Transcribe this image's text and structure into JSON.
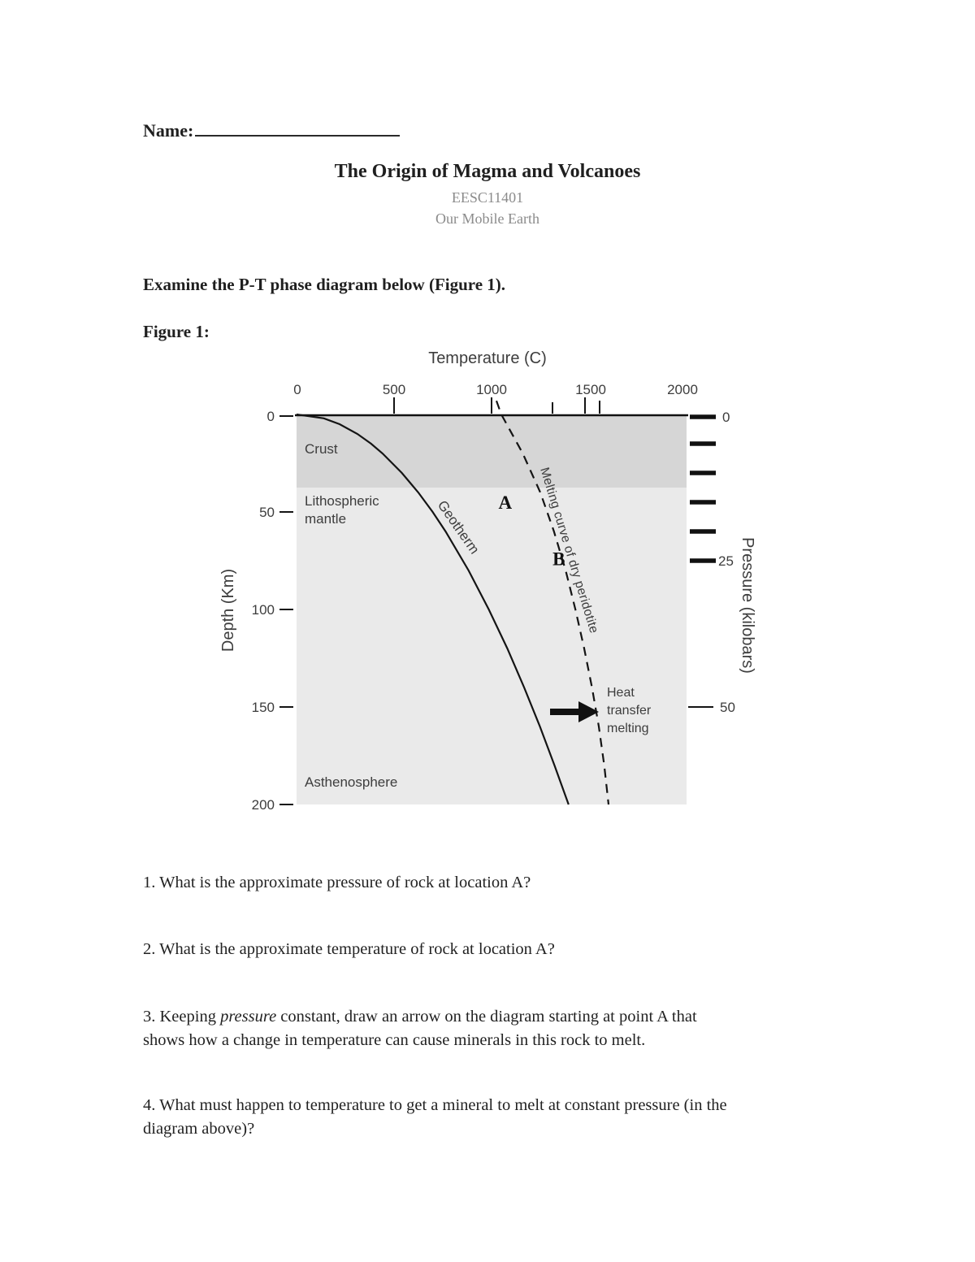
{
  "page": {
    "name_label": "Name:",
    "title": "The Origin of Magma and Volcanoes",
    "course_code": "EESC11401",
    "course_name": "Our Mobile Earth",
    "instruction": "Examine the P-T phase diagram below (Figure 1).",
    "figure_caption": "Figure 1:"
  },
  "figure": {
    "x_axis_title": "Temperature (C)",
    "x_ticks": [
      "0",
      "500",
      "1000",
      "1500",
      "2000"
    ],
    "depth_axis_title": "Depth (Km)",
    "depth_ticks": [
      "0",
      "50",
      "100",
      "150",
      "200"
    ],
    "pressure_axis_title": "Pressure (kilobars)",
    "pressure_ticks": [
      "0",
      "25",
      "50"
    ],
    "region_crust": "Crust",
    "region_lith_line1": "Lithospheric",
    "region_lith_line2": "mantle",
    "region_asthenosphere": "Asthenosphere",
    "geotherm_label": "Geotherm",
    "melting_label": "Melting curve of dry peridotite",
    "heat_line1": "Heat",
    "heat_line2": "transfer",
    "heat_line3": "melting"
  },
  "chart_data": {
    "type": "line",
    "title": "P-T phase diagram of the Earth's interior",
    "xlabel": "Temperature (C)",
    "ylabel_left": "Depth (Km)",
    "ylabel_right": "Pressure (kilobars)",
    "xlim": [
      0,
      2000
    ],
    "depth_lim": [
      0,
      200
    ],
    "pressure_lim": [
      0,
      50
    ],
    "x_tick_values": [
      0,
      500,
      1000,
      1500,
      2000
    ],
    "depth_tick_values": [
      0,
      50,
      100,
      150,
      200
    ],
    "pressure_tick_values": [
      0,
      25,
      50
    ],
    "grid": false,
    "point_format": [
      "temp_c",
      "depth_km"
    ],
    "regions": [
      {
        "name": "Crust",
        "depth_range_km": [
          0,
          38
        ]
      },
      {
        "name": "Lithospheric mantle",
        "depth_range_km": [
          38,
          100
        ]
      },
      {
        "name": "Asthenosphere",
        "depth_range_km": [
          100,
          200
        ]
      }
    ],
    "series": [
      {
        "name": "Geotherm",
        "style": "solid",
        "points": [
          [
            0,
            0
          ],
          [
            140,
            2
          ],
          [
            221,
            5
          ],
          [
            312,
            10
          ],
          [
            382,
            15
          ],
          [
            441,
            20
          ],
          [
            540,
            30
          ],
          [
            624,
            40
          ],
          [
            698,
            50
          ],
          [
            764,
            60
          ],
          [
            882,
            80
          ],
          [
            986,
            100
          ],
          [
            1081,
            120
          ],
          [
            1167,
            140
          ],
          [
            1248,
            160
          ],
          [
            1323,
            180
          ],
          [
            1395,
            200
          ]
        ]
      },
      {
        "name": "Melting curve of dry peridotite",
        "style": "dashed",
        "points": [
          [
            1025,
            -7
          ],
          [
            1050,
            0
          ],
          [
            1160,
            20
          ],
          [
            1250,
            40
          ],
          [
            1320,
            60
          ],
          [
            1380,
            80
          ],
          [
            1430,
            100
          ],
          [
            1475,
            120
          ],
          [
            1515,
            140
          ],
          [
            1550,
            160
          ],
          [
            1578,
            180
          ],
          [
            1600,
            200
          ]
        ]
      }
    ],
    "markers": [
      {
        "label": "A",
        "temp_c": 1070,
        "depth_km": 45
      },
      {
        "label": "B",
        "temp_c": 1345,
        "depth_km": 74
      }
    ],
    "annotation": {
      "text": "Heat transfer melting",
      "arrow_direction": "right",
      "depth_km": 152
    }
  },
  "questions": {
    "q1": "1. What is the approximate pressure of rock at location A?",
    "q2": "2. What is the approximate temperature of rock at location A?",
    "q3": {
      "pre": "3. Keeping ",
      "italic": "pressure",
      "post": " constant, draw an arrow on the diagram starting at point A that",
      "line2": "shows how a change in temperature can cause minerals in this rock to melt."
    },
    "q4": {
      "line1": "4. What must happen to temperature to get a mineral to melt at constant pressure (in the",
      "line2": "diagram above)?"
    }
  },
  "colors": {
    "plot_background": "#eaeaea",
    "crust_band": "#d6d6d6",
    "ink": "#141414",
    "muted_text": "#8b8b8b"
  }
}
